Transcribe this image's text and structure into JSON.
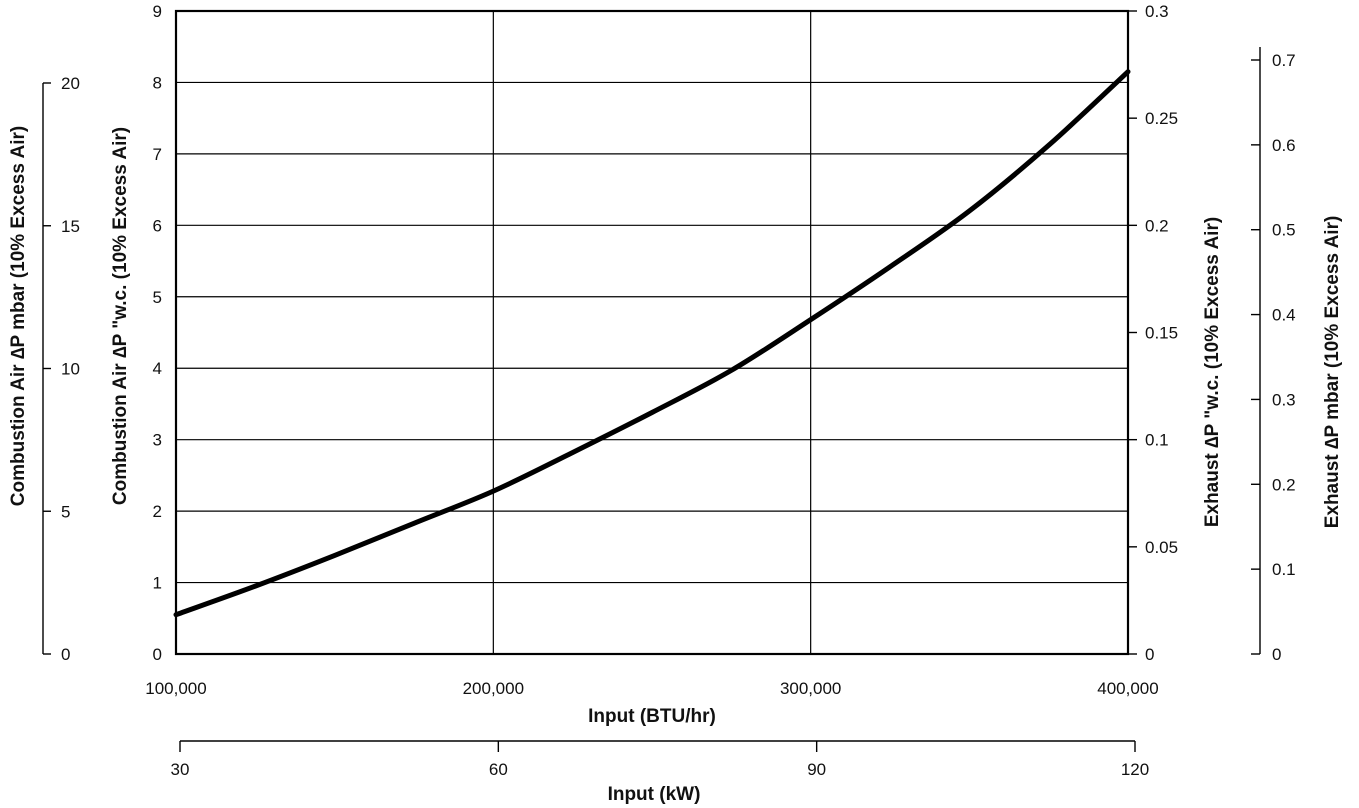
{
  "chart_data": {
    "type": "line",
    "x_label": "Input (BTU/hr)",
    "x_secondary_label": "Input (kW)",
    "y_left_label": "Combustion Air ∆P \"w.c. (10% Excess Air)",
    "y_left_outer_label": "Combustion Air ∆P mbar (10% Excess Air)",
    "y_right_label": "Exhaust ∆P \"w.c. (10% Excess Air)",
    "y_right_outer_label": "Exhaust ∆P mbar (10% Excess Air)",
    "xlim": [
      100000,
      400000
    ],
    "ylim": [
      0,
      9
    ],
    "x_ticks": [
      "100,000",
      "200,000",
      "300,000",
      "400,000"
    ],
    "x_tick_values": [
      100000,
      200000,
      300000,
      400000
    ],
    "x_secondary_ticks": [
      "30",
      "60",
      "90",
      "120"
    ],
    "x_secondary_tick_values": [
      30,
      60,
      90,
      120
    ],
    "x_secondary_lim": [
      30,
      120
    ],
    "y_ticks": [
      "0",
      "1",
      "2",
      "3",
      "4",
      "5",
      "6",
      "7",
      "8",
      "9"
    ],
    "y_outer_ticks": [
      "0",
      "5",
      "10",
      "15",
      "20"
    ],
    "y_outer_tick_values": [
      0,
      5,
      10,
      15,
      20
    ],
    "y_outer_lim": [
      0,
      20
    ],
    "y_right_ticks": [
      "0",
      "0.05",
      "0.1",
      "0.15",
      "0.2",
      "0.25",
      "0.3"
    ],
    "y_right_tick_values": [
      0,
      0.05,
      0.1,
      0.15,
      0.2,
      0.25,
      0.3
    ],
    "y_right_lim": [
      0,
      0.3
    ],
    "y_right_outer_ticks": [
      "0",
      "0.1",
      "0.2",
      "0.3",
      "0.4",
      "0.5",
      "0.6",
      "0.7"
    ],
    "y_right_outer_tick_values": [
      0,
      0.1,
      0.2,
      0.3,
      0.4,
      0.5,
      0.6,
      0.7
    ],
    "y_right_outer_lim": [
      0,
      0.7
    ],
    "grid": true,
    "series": [
      {
        "x": [
          100000,
          125000,
          150000,
          175000,
          200000,
          225000,
          250000,
          275000,
          300000,
          325000,
          350000,
          375000,
          400000
        ],
        "y": [
          0.55,
          0.95,
          1.38,
          1.83,
          2.28,
          2.82,
          3.38,
          3.97,
          4.68,
          5.42,
          6.2,
          7.12,
          8.15
        ]
      }
    ]
  }
}
